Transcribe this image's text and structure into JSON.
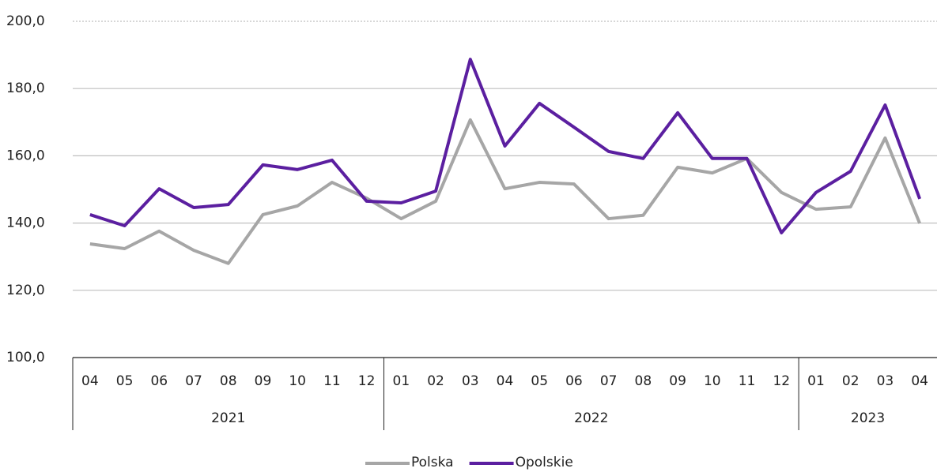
{
  "chart_data": {
    "type": "line",
    "categories": [
      "04",
      "05",
      "06",
      "07",
      "08",
      "09",
      "10",
      "11",
      "12",
      "01",
      "02",
      "03",
      "04",
      "05",
      "06",
      "07",
      "08",
      "09",
      "10",
      "11",
      "12",
      "01",
      "02",
      "03",
      "04"
    ],
    "x_groups": [
      {
        "label": "2021",
        "start": 0,
        "end": 8
      },
      {
        "label": "2022",
        "start": 9,
        "end": 20
      },
      {
        "label": "2023",
        "start": 21,
        "end": 24
      }
    ],
    "series": [
      {
        "name": "Polska",
        "color": "#a6a6a6",
        "values": [
          133.8,
          132.4,
          137.6,
          131.9,
          128.0,
          142.5,
          145.1,
          152.1,
          147.4,
          141.3,
          146.5,
          170.7,
          150.2,
          152.1,
          151.6,
          141.3,
          142.3,
          156.6,
          154.9,
          159.2,
          149.1,
          144.1,
          144.8,
          165.3,
          139.9
        ]
      },
      {
        "name": "Opolskie",
        "color": "#5b1fa0",
        "values": [
          142.5,
          139.2,
          150.2,
          144.6,
          145.5,
          157.3,
          155.9,
          158.7,
          146.5,
          146.0,
          149.5,
          188.7,
          162.9,
          175.6,
          168.5,
          161.3,
          159.2,
          172.8,
          159.2,
          159.2,
          137.1,
          149.1,
          155.4,
          175.1,
          147.2
        ]
      }
    ],
    "ylim": [
      100,
      200
    ],
    "yticks": [
      {
        "value": 100,
        "label": "100,0"
      },
      {
        "value": 120,
        "label": "120,0"
      },
      {
        "value": 140,
        "label": "140,0"
      },
      {
        "value": 160,
        "label": "160,0"
      },
      {
        "value": 180,
        "label": "180,0"
      },
      {
        "value": 200,
        "label": "200,0"
      }
    ],
    "grid": true,
    "legend": "bottom"
  }
}
